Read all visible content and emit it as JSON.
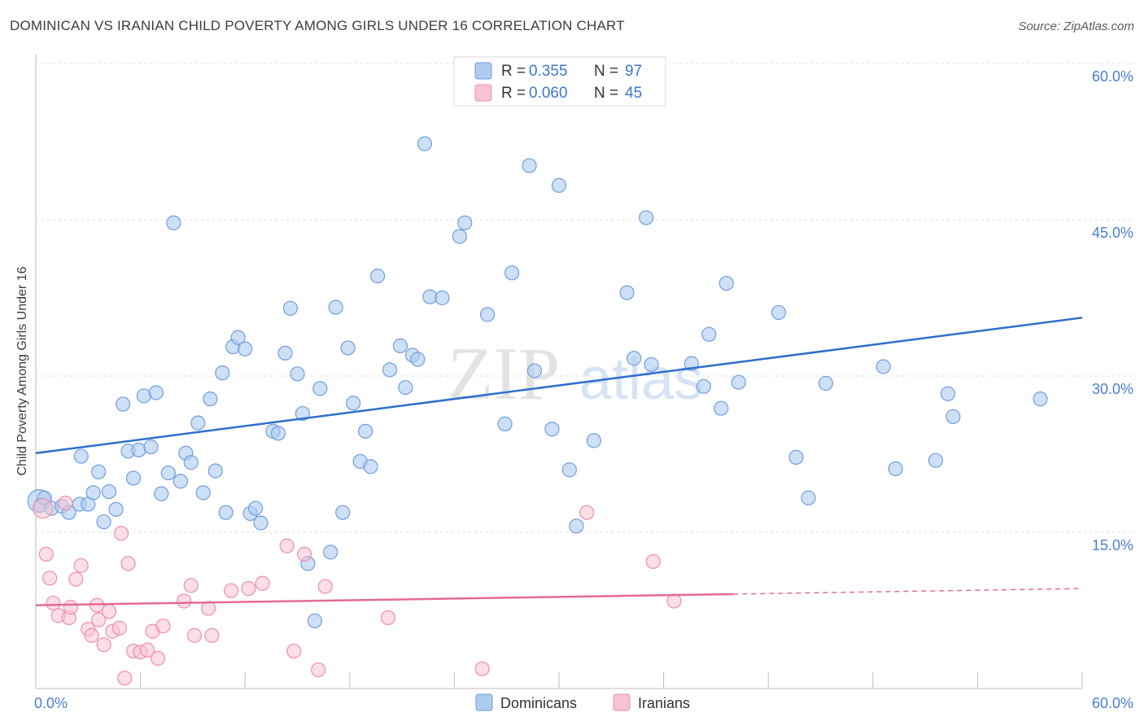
{
  "header": {
    "title": "DOMINICAN VS IRANIAN CHILD POVERTY AMONG GIRLS UNDER 16 CORRELATION CHART",
    "source": "Source: ZipAtlas.com"
  },
  "legend": {
    "rows": [
      {
        "r_label": "R =",
        "r_value": "0.355",
        "n_label": "N =",
        "n_value": "97"
      },
      {
        "r_label": "R =",
        "r_value": "0.060",
        "n_label": "N =",
        "n_value": "45"
      }
    ]
  },
  "watermark": {
    "zip": "ZIP",
    "atlas": "atlas"
  },
  "chart_data": {
    "type": "scatter",
    "ylabel": "Child Poverty Among Girls Under 16",
    "xlim": [
      0,
      60
    ],
    "ylim": [
      0,
      60
    ],
    "x_tick_labels": [
      "0.0%",
      "60.0%"
    ],
    "y_ticks": [
      15,
      30,
      45,
      60
    ],
    "y_tick_labels": [
      "15.0%",
      "30.0%",
      "45.0%",
      "60.0%"
    ],
    "grid": true,
    "legend_position": "top-center",
    "colors": {
      "dominicans_fill": "#aecbf0",
      "dominicans_stroke": "#6f9ee0",
      "dominicans_line": "#2d6fcc",
      "iranians_fill": "#f8c3d2",
      "iranians_stroke": "#ee8fab",
      "iranians_line": "#e56a92",
      "tick_text": "#4a7fd0"
    },
    "series": [
      {
        "name": "Dominicans",
        "trend": {
          "x": [
            0,
            60
          ],
          "y": [
            22.6,
            35.6
          ],
          "dashed_from": null
        },
        "points": [
          [
            0.2,
            18.0
          ],
          [
            0.3,
            17.6
          ],
          [
            0.5,
            18.3
          ],
          [
            0.9,
            17.3
          ],
          [
            1.5,
            17.5
          ],
          [
            1.9,
            16.9
          ],
          [
            2.5,
            17.7
          ],
          [
            2.6,
            22.3
          ],
          [
            3.0,
            17.7
          ],
          [
            3.3,
            18.8
          ],
          [
            3.6,
            20.8
          ],
          [
            3.9,
            16.0
          ],
          [
            4.2,
            18.9
          ],
          [
            4.6,
            17.2
          ],
          [
            5.0,
            27.3
          ],
          [
            5.3,
            22.8
          ],
          [
            5.6,
            20.2
          ],
          [
            5.9,
            22.9
          ],
          [
            6.2,
            28.1
          ],
          [
            6.6,
            23.2
          ],
          [
            6.9,
            28.4
          ],
          [
            7.2,
            18.7
          ],
          [
            7.6,
            20.7
          ],
          [
            7.9,
            44.7
          ],
          [
            8.3,
            19.9
          ],
          [
            8.6,
            22.6
          ],
          [
            8.9,
            21.7
          ],
          [
            9.3,
            25.5
          ],
          [
            9.6,
            18.8
          ],
          [
            10.0,
            27.8
          ],
          [
            10.3,
            20.9
          ],
          [
            10.7,
            30.3
          ],
          [
            10.9,
            16.9
          ],
          [
            11.3,
            32.8
          ],
          [
            11.6,
            33.7
          ],
          [
            12.0,
            32.6
          ],
          [
            12.3,
            16.8
          ],
          [
            12.6,
            17.3
          ],
          [
            12.9,
            15.9
          ],
          [
            13.6,
            24.7
          ],
          [
            13.9,
            24.5
          ],
          [
            14.3,
            32.2
          ],
          [
            14.6,
            36.5
          ],
          [
            15.0,
            30.2
          ],
          [
            15.3,
            26.4
          ],
          [
            15.6,
            12.0
          ],
          [
            16.0,
            6.5
          ],
          [
            16.3,
            28.8
          ],
          [
            16.9,
            13.1
          ],
          [
            17.2,
            36.6
          ],
          [
            17.6,
            16.9
          ],
          [
            17.9,
            32.7
          ],
          [
            18.2,
            27.4
          ],
          [
            18.6,
            21.8
          ],
          [
            18.9,
            24.7
          ],
          [
            19.2,
            21.3
          ],
          [
            19.6,
            39.6
          ],
          [
            20.3,
            30.6
          ],
          [
            20.9,
            32.9
          ],
          [
            21.2,
            28.9
          ],
          [
            21.6,
            32.0
          ],
          [
            21.9,
            31.6
          ],
          [
            22.3,
            52.3
          ],
          [
            22.6,
            37.6
          ],
          [
            23.3,
            37.5
          ],
          [
            24.3,
            43.4
          ],
          [
            24.6,
            44.7
          ],
          [
            25.9,
            35.9
          ],
          [
            26.9,
            25.4
          ],
          [
            27.3,
            39.9
          ],
          [
            28.3,
            50.2
          ],
          [
            28.6,
            30.5
          ],
          [
            29.6,
            24.9
          ],
          [
            30.0,
            48.3
          ],
          [
            30.6,
            21.0
          ],
          [
            31.0,
            15.6
          ],
          [
            32.0,
            23.8
          ],
          [
            33.9,
            38.0
          ],
          [
            34.3,
            31.7
          ],
          [
            35.0,
            45.2
          ],
          [
            35.3,
            31.1
          ],
          [
            37.6,
            31.2
          ],
          [
            38.3,
            29.0
          ],
          [
            38.6,
            34.0
          ],
          [
            39.3,
            26.9
          ],
          [
            39.6,
            38.9
          ],
          [
            40.3,
            29.4
          ],
          [
            42.6,
            36.1
          ],
          [
            43.6,
            22.2
          ],
          [
            44.3,
            18.3
          ],
          [
            45.3,
            29.3
          ],
          [
            48.6,
            30.9
          ],
          [
            49.3,
            21.1
          ],
          [
            51.6,
            21.9
          ],
          [
            52.3,
            28.3
          ],
          [
            52.6,
            26.1
          ],
          [
            57.6,
            27.8
          ]
        ]
      },
      {
        "name": "Iranians",
        "trend": {
          "x": [
            0,
            60
          ],
          "y": [
            8.0,
            9.6
          ],
          "dashed_from": 40
        },
        "points": [
          [
            0.4,
            17.3
          ],
          [
            0.6,
            12.9
          ],
          [
            0.8,
            10.6
          ],
          [
            1.0,
            8.2
          ],
          [
            1.3,
            7.0
          ],
          [
            1.7,
            17.8
          ],
          [
            1.9,
            6.8
          ],
          [
            2.0,
            7.8
          ],
          [
            2.3,
            10.5
          ],
          [
            2.6,
            11.8
          ],
          [
            3.0,
            5.7
          ],
          [
            3.2,
            5.1
          ],
          [
            3.5,
            8.0
          ],
          [
            3.6,
            6.6
          ],
          [
            3.9,
            4.2
          ],
          [
            4.2,
            7.4
          ],
          [
            4.4,
            5.5
          ],
          [
            4.8,
            5.8
          ],
          [
            4.9,
            14.9
          ],
          [
            5.1,
            1.0
          ],
          [
            5.3,
            12.0
          ],
          [
            5.6,
            3.6
          ],
          [
            6.0,
            3.5
          ],
          [
            6.4,
            3.7
          ],
          [
            6.7,
            5.5
          ],
          [
            7.0,
            2.9
          ],
          [
            7.3,
            6.0
          ],
          [
            8.5,
            8.4
          ],
          [
            8.9,
            9.9
          ],
          [
            9.1,
            5.1
          ],
          [
            9.9,
            7.7
          ],
          [
            10.1,
            5.1
          ],
          [
            11.2,
            9.4
          ],
          [
            12.2,
            9.6
          ],
          [
            13.0,
            10.1
          ],
          [
            14.4,
            13.7
          ],
          [
            14.8,
            3.6
          ],
          [
            15.4,
            12.9
          ],
          [
            16.2,
            1.8
          ],
          [
            16.6,
            9.8
          ],
          [
            20.2,
            6.8
          ],
          [
            25.6,
            1.9
          ],
          [
            31.6,
            16.9
          ],
          [
            35.4,
            12.2
          ],
          [
            36.6,
            8.4
          ]
        ]
      }
    ]
  }
}
